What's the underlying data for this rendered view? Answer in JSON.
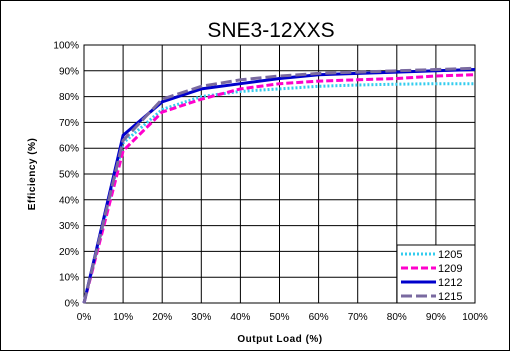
{
  "chart_data": {
    "type": "line",
    "title": "SNE3-12XXS",
    "xlabel": "Output Load (%)",
    "ylabel": "Efficiency (%)",
    "xlim": [
      0,
      100
    ],
    "ylim": [
      0,
      100
    ],
    "x_ticks": [
      "0%",
      "10%",
      "20%",
      "30%",
      "40%",
      "50%",
      "60%",
      "70%",
      "80%",
      "90%",
      "100%"
    ],
    "y_ticks": [
      "0%",
      "10%",
      "20%",
      "30%",
      "40%",
      "50%",
      "60%",
      "70%",
      "80%",
      "90%",
      "100%"
    ],
    "grid": true,
    "legend": "bottom-right",
    "x": [
      0,
      10,
      20,
      30,
      40,
      50,
      60,
      70,
      80,
      90,
      100
    ],
    "series": [
      {
        "name": "1205",
        "color": "#33ccee",
        "style": "dotted",
        "values": [
          0,
          62,
          75,
          80,
          82,
          83,
          84,
          84.5,
          84.8,
          85,
          85
        ]
      },
      {
        "name": "1209",
        "color": "#ff00cc",
        "style": "dashed",
        "values": [
          0,
          59,
          74,
          79,
          83,
          85,
          86,
          86.5,
          87,
          88,
          88.5
        ]
      },
      {
        "name": "1212",
        "color": "#0000cc",
        "style": "solid",
        "values": [
          0,
          65,
          78,
          83,
          85,
          87,
          88.5,
          89,
          89.5,
          90,
          90.5
        ]
      },
      {
        "name": "1215",
        "color": "#7a6aa0",
        "style": "longdash",
        "values": [
          0,
          63,
          79,
          84,
          86.5,
          88,
          89,
          89.5,
          90,
          90.5,
          91
        ]
      }
    ]
  }
}
